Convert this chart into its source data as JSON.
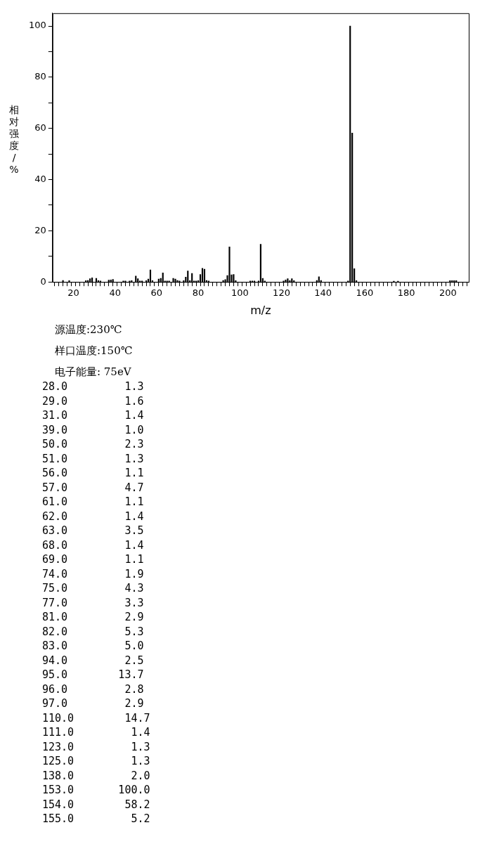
{
  "chart_data": [
    {
      "type": "bar",
      "xlabel": "m/z",
      "ylabel": "相对强度/%",
      "annotations": [
        "源温度:230℃",
        "样口温度:150℃",
        "电子能量: 75eV"
      ],
      "x": [
        15,
        18,
        26,
        27,
        28,
        29,
        31,
        32,
        33,
        37,
        38,
        39,
        44,
        45,
        47,
        48,
        50,
        51,
        52,
        53,
        55,
        56,
        57,
        58,
        61,
        62,
        63,
        64,
        65,
        66,
        68,
        69,
        70,
        71,
        73,
        74,
        75,
        76,
        77,
        78,
        79,
        80,
        81,
        82,
        83,
        84,
        85,
        92,
        93,
        94,
        95,
        96,
        97,
        98,
        105,
        106,
        107,
        109,
        110,
        111,
        112,
        121,
        122,
        123,
        124,
        125,
        126,
        137,
        138,
        139,
        152,
        153,
        154,
        155,
        156,
        174,
        176,
        201,
        202,
        203,
        204
      ],
      "values": [
        0.6,
        0.5,
        0.5,
        0.6,
        1.3,
        1.6,
        1.4,
        0.5,
        0.4,
        0.7,
        0.8,
        1.0,
        0.4,
        0.4,
        0.4,
        0.5,
        2.3,
        1.3,
        0.4,
        0.4,
        0.5,
        1.1,
        4.7,
        0.5,
        1.1,
        1.4,
        3.5,
        0.4,
        0.4,
        0.4,
        1.4,
        1.1,
        0.6,
        0.4,
        0.5,
        1.9,
        4.3,
        0.5,
        3.3,
        0.4,
        0.4,
        0.5,
        2.9,
        5.3,
        5.0,
        0.6,
        0.4,
        0.6,
        0.9,
        2.5,
        13.7,
        2.8,
        2.9,
        0.5,
        0.4,
        0.4,
        0.4,
        0.4,
        14.7,
        1.4,
        0.4,
        0.4,
        0.8,
        1.3,
        0.5,
        1.3,
        0.5,
        0.6,
        2.0,
        0.6,
        0.4,
        100.0,
        58.2,
        5.2,
        0.5,
        0.3,
        0.3,
        0.5,
        0.5,
        0.5,
        0.5
      ],
      "color": "#000000",
      "xlim": [
        10,
        210
      ],
      "xticks": [
        {
          "value": 12,
          "label": null
        },
        {
          "value": 14,
          "label": null
        },
        {
          "value": 16,
          "label": null
        },
        {
          "value": 18,
          "label": null
        },
        20,
        {
          "value": 22,
          "label": null
        },
        {
          "value": 24,
          "label": null
        },
        {
          "value": 26,
          "label": null
        },
        {
          "value": 28,
          "label": null
        },
        {
          "value": 30,
          "label": null
        },
        {
          "value": 32,
          "label": null
        },
        {
          "value": 34,
          "label": null
        },
        {
          "value": 36,
          "label": null
        },
        {
          "value": 38,
          "label": null
        },
        40,
        {
          "value": 42,
          "label": null
        },
        {
          "value": 44,
          "label": null
        },
        {
          "value": 46,
          "label": null
        },
        {
          "value": 48,
          "label": null
        },
        {
          "value": 50,
          "label": null
        },
        {
          "value": 52,
          "label": null
        },
        {
          "value": 54,
          "label": null
        },
        {
          "value": 56,
          "label": null
        },
        {
          "value": 58,
          "label": null
        },
        60,
        {
          "value": 62,
          "label": null
        },
        {
          "value": 64,
          "label": null
        },
        {
          "value": 66,
          "label": null
        },
        {
          "value": 68,
          "label": null
        },
        {
          "value": 70,
          "label": null
        },
        {
          "value": 72,
          "label": null
        },
        {
          "value": 74,
          "label": null
        },
        {
          "value": 76,
          "label": null
        },
        {
          "value": 78,
          "label": null
        },
        80,
        {
          "value": 82,
          "label": null
        },
        {
          "value": 84,
          "label": null
        },
        {
          "value": 86,
          "label": null
        },
        {
          "value": 88,
          "label": null
        },
        {
          "value": 90,
          "label": null
        },
        {
          "value": 92,
          "label": null
        },
        {
          "value": 94,
          "label": null
        },
        {
          "value": 96,
          "label": null
        },
        {
          "value": 98,
          "label": null
        },
        100,
        {
          "value": 102,
          "label": null
        },
        {
          "value": 104,
          "label": null
        },
        {
          "value": 106,
          "label": null
        },
        {
          "value": 108,
          "label": null
        },
        {
          "value": 110,
          "label": null
        },
        {
          "value": 112,
          "label": null
        },
        {
          "value": 114,
          "label": null
        },
        {
          "value": 116,
          "label": null
        },
        {
          "value": 118,
          "label": null
        },
        120,
        {
          "value": 122,
          "label": null
        },
        {
          "value": 124,
          "label": null
        },
        {
          "value": 126,
          "label": null
        },
        {
          "value": 128,
          "label": null
        },
        {
          "value": 130,
          "label": null
        },
        {
          "value": 132,
          "label": null
        },
        {
          "value": 134,
          "label": null
        },
        {
          "value": 136,
          "label": null
        },
        {
          "value": 138,
          "label": null
        },
        140,
        {
          "value": 142,
          "label": null
        },
        {
          "value": 144,
          "label": null
        },
        {
          "value": 146,
          "label": null
        },
        {
          "value": 148,
          "label": null
        },
        {
          "value": 150,
          "label": null
        },
        {
          "value": 152,
          "label": null
        },
        {
          "value": 154,
          "label": null
        },
        {
          "value": 156,
          "label": null
        },
        {
          "value": 158,
          "label": null
        },
        160,
        {
          "value": 162,
          "label": null
        },
        {
          "value": 164,
          "label": null
        },
        {
          "value": 166,
          "label": null
        },
        {
          "value": 168,
          "label": null
        },
        {
          "value": 170,
          "label": null
        },
        {
          "value": 172,
          "label": null
        },
        {
          "value": 174,
          "label": null
        },
        {
          "value": 176,
          "label": null
        },
        {
          "value": 178,
          "label": null
        },
        180,
        {
          "value": 182,
          "label": null
        },
        {
          "value": 184,
          "label": null
        },
        {
          "value": 186,
          "label": null
        },
        {
          "value": 188,
          "label": null
        },
        {
          "value": 190,
          "label": null
        },
        {
          "value": 192,
          "label": null
        },
        {
          "value": 194,
          "label": null
        },
        {
          "value": 196,
          "label": null
        },
        {
          "value": 198,
          "label": null
        },
        200,
        {
          "value": 202,
          "label": null
        },
        {
          "value": 204,
          "label": null
        },
        {
          "value": 206,
          "label": null
        },
        {
          "value": 208,
          "label": null
        }
      ],
      "ylim": [
        0,
        105
      ],
      "yticks": [
        0,
        {
          "value": 10,
          "label": null
        },
        20,
        {
          "value": 30,
          "label": null
        },
        40,
        {
          "value": 50,
          "label": null
        },
        60,
        {
          "value": 70,
          "label": null
        },
        80,
        {
          "value": 90,
          "label": null
        },
        100
      ],
      "grid": false,
      "legend": false
    },
    {
      "type": "other",
      "annotations": [
        "28.0         1.3",
        "29.0         1.6",
        "31.0         1.4",
        "39.0         1.0",
        "50.0         2.3",
        "51.0         1.3",
        "56.0         1.1",
        "57.0         4.7",
        "61.0         1.1",
        "62.0         1.4",
        "63.0         3.5",
        "68.0         1.4",
        "69.0         1.1",
        "74.0         1.9",
        "75.0         4.3",
        "77.0         3.3",
        "81.0         2.9",
        "82.0         5.3",
        "83.0         5.0",
        "94.0         2.5",
        "95.0        13.7",
        "96.0         2.8",
        "97.0         2.9",
        "110.0        14.7",
        "111.0         1.4",
        "123.0         1.3",
        "125.0         1.3",
        "138.0         2.0",
        "153.0       100.0",
        "154.0        58.2",
        "155.0         5.2"
      ]
    }
  ]
}
